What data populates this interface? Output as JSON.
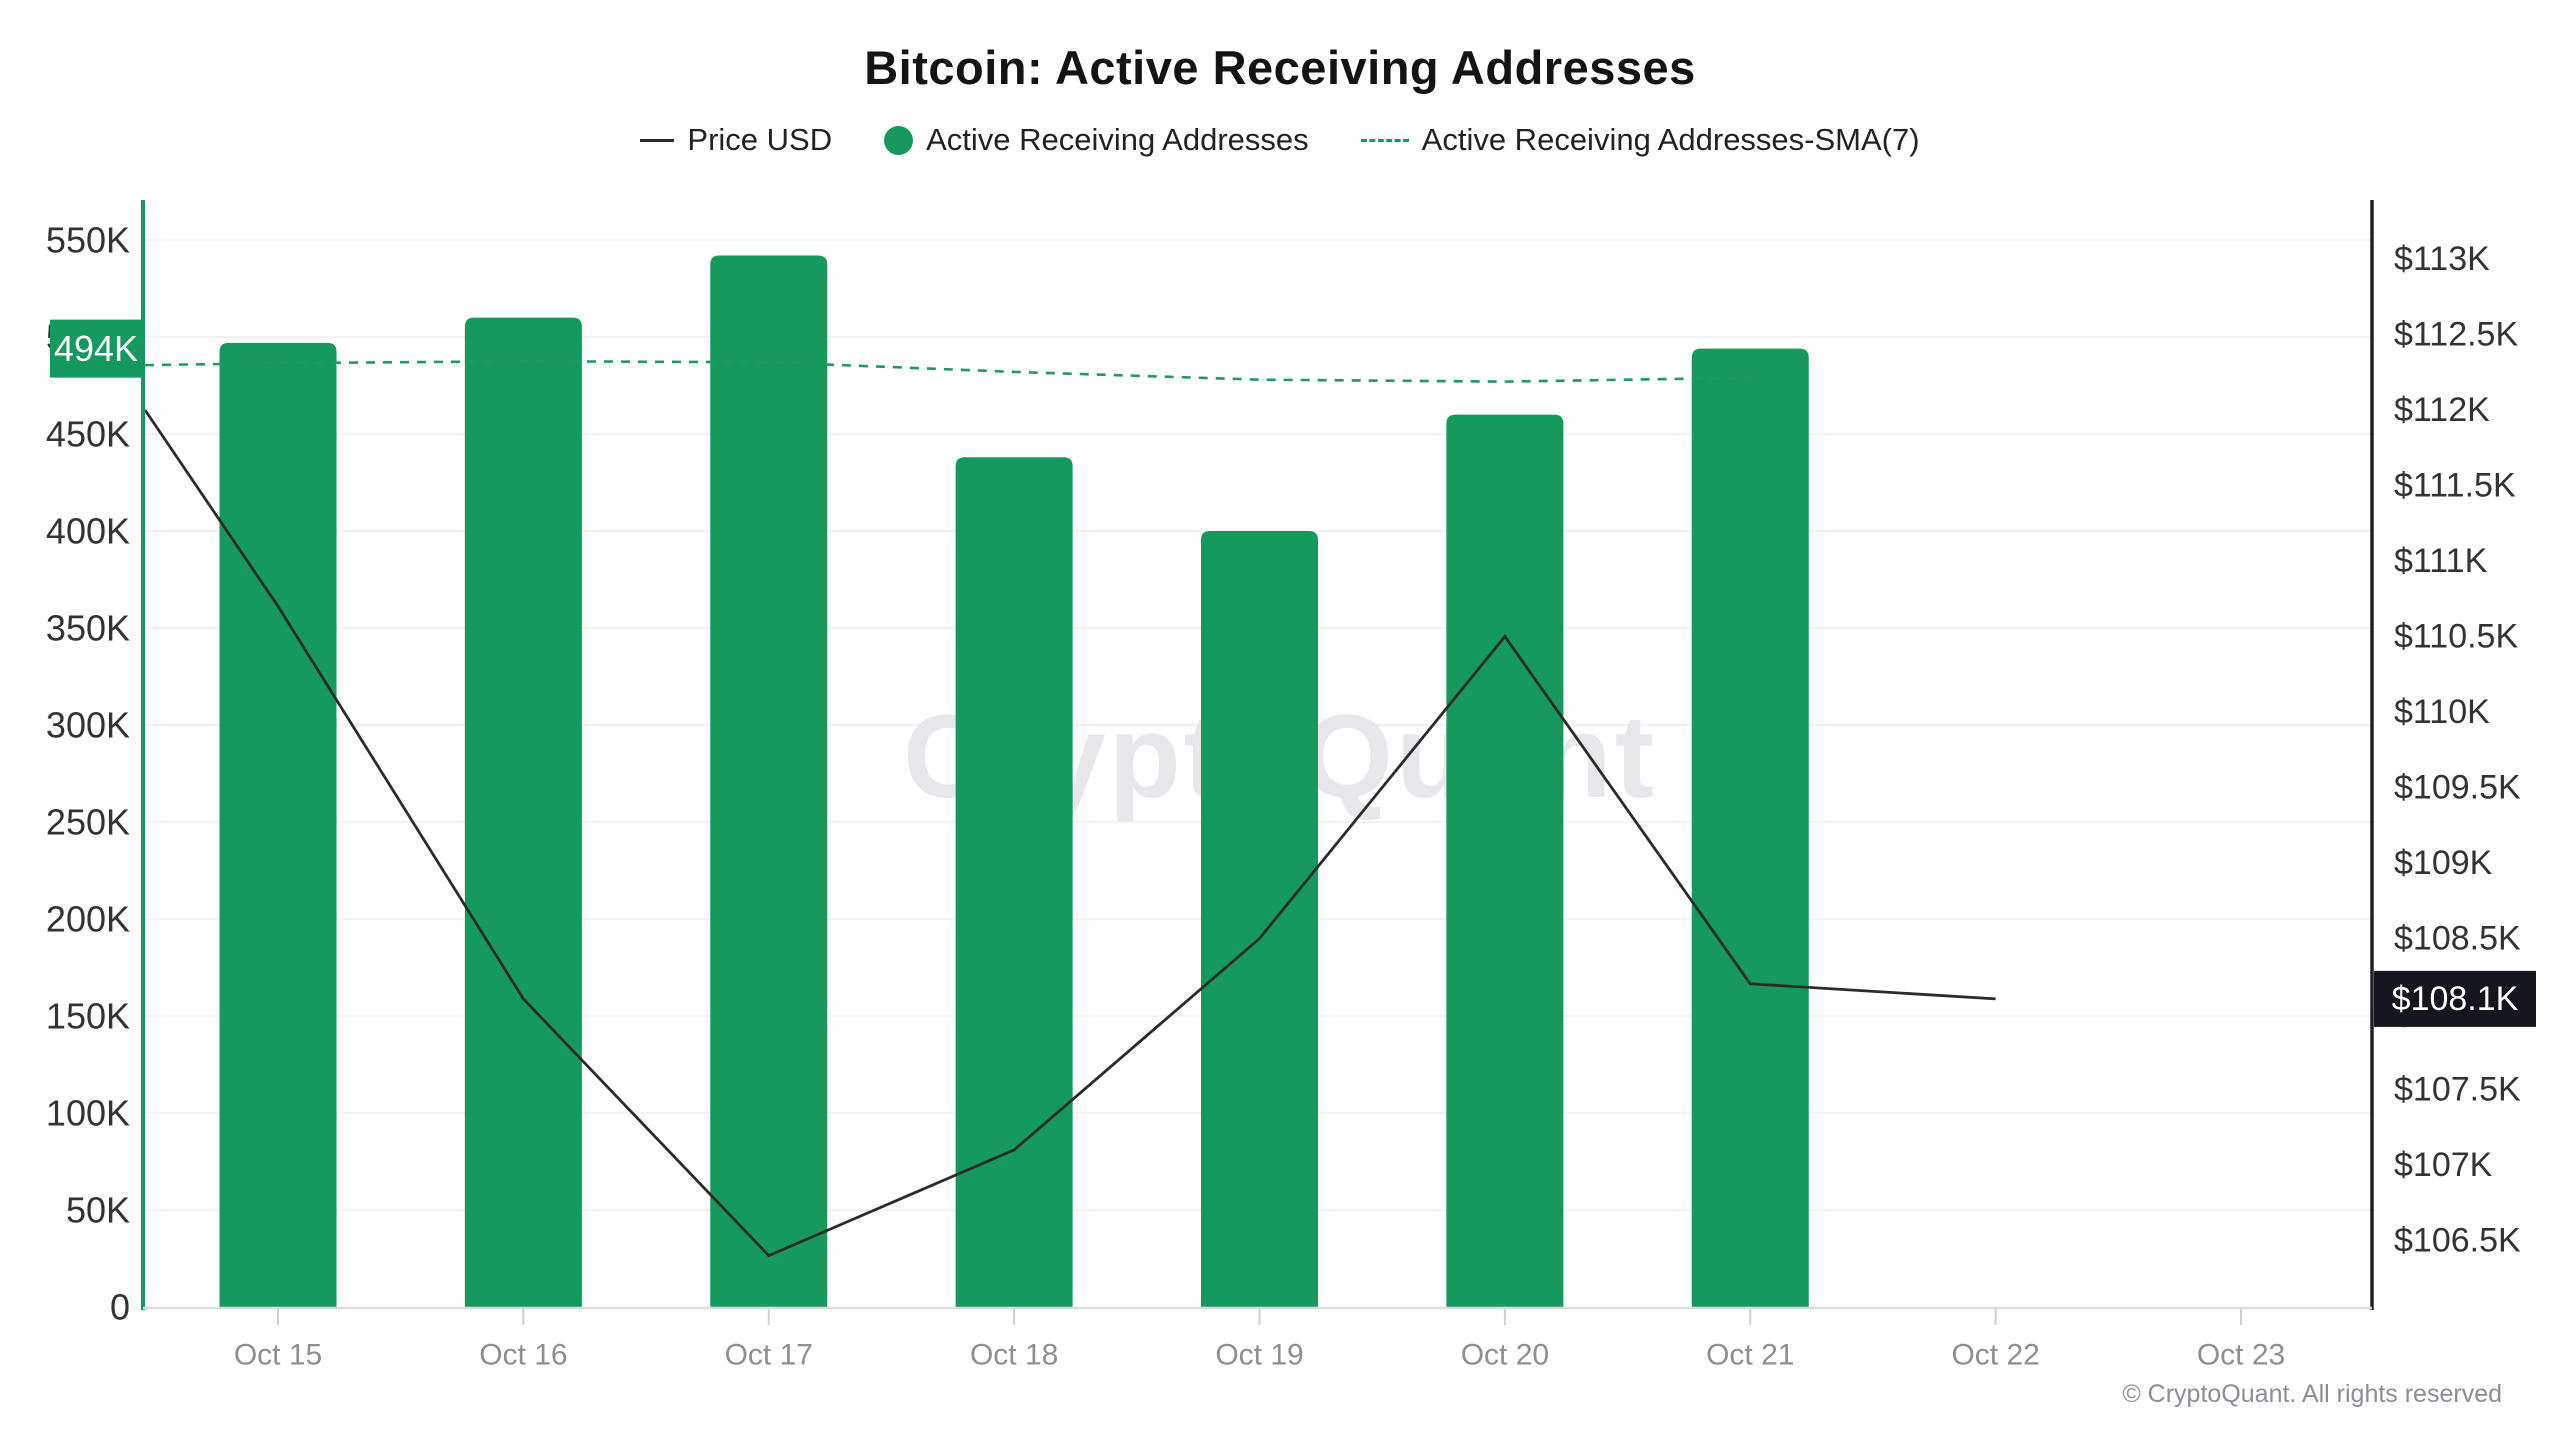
{
  "title": "Bitcoin: Active Receiving Addresses",
  "legend": [
    {
      "label": "Price USD",
      "marker": "solid-line",
      "color": "#2b2b2b"
    },
    {
      "label": "Active Receiving Addresses",
      "marker": "dot",
      "color": "#16995f"
    },
    {
      "label": "Active Receiving Addresses-SMA(7)",
      "marker": "dashed-line",
      "color": "#1d9a64"
    }
  ],
  "watermark": "CryptoQuant",
  "attribution": "© CryptoQuant. All rights reserved",
  "colors": {
    "bar": "#16995f",
    "sma_line": "#1d9a64",
    "price_line": "#2b2b2b",
    "grid": "#f3f3f5",
    "axis_left": "#16995f",
    "axis_right": "#202028",
    "axis_bottom": "#dcdcdf",
    "x_tick": "#cfcfd4",
    "tick_label": "#333333",
    "date_label": "#8e8e93",
    "badge_left_bg": "#16995f",
    "badge_right_bg": "#16161e",
    "badge_text": "#ffffff",
    "watermark_color": "#e7e7ec"
  },
  "chart_data": {
    "type": "bar",
    "title": "Bitcoin: Active Receiving Addresses",
    "xlabel": "",
    "ylabel_left": "Active Receiving Addresses",
    "ylabel_right": "Price USD",
    "grid": "horizontal",
    "legend_position": "top",
    "categories": [
      "Oct 15",
      "Oct 16",
      "Oct 17",
      "Oct 18",
      "Oct 19",
      "Oct 20",
      "Oct 21",
      "Oct 22",
      "Oct 23"
    ],
    "series": [
      {
        "name": "Active Receiving Addresses",
        "type": "bar",
        "axis": "left",
        "values": [
          497000,
          510000,
          542000,
          438000,
          400000,
          460000,
          494000,
          null,
          null
        ]
      },
      {
        "name": "Price USD",
        "type": "line",
        "axis": "right",
        "edge_start_value": 112000,
        "values": [
          110700,
          108100,
          106400,
          107100,
          108500,
          110500,
          108200,
          108100,
          null
        ]
      },
      {
        "name": "Active Receiving Addresses-SMA(7)",
        "type": "dashed-line",
        "axis": "left",
        "edge_start_value": 485500,
        "values": [
          486500,
          487500,
          487000,
          482000,
          478000,
          477000,
          479000,
          null,
          null
        ]
      }
    ],
    "left_axis": {
      "range": [
        0,
        550000
      ],
      "tick_step": 50000,
      "ticks": [
        "0",
        "50K",
        "100K",
        "150K",
        "200K",
        "250K",
        "300K",
        "350K",
        "400K",
        "450K",
        "500K",
        "550K"
      ],
      "current_value": 494000,
      "current_value_label": "494K"
    },
    "right_axis": {
      "range": [
        106500,
        113000
      ],
      "tick_step": 500,
      "ticks": [
        "$106.5K",
        "$107K",
        "$107.5K",
        "$108K",
        "$108.5K",
        "$109K",
        "$109.5K",
        "$110K",
        "$110.5K",
        "$111K",
        "$111.5K",
        "$112K",
        "$112.5K",
        "$113K"
      ],
      "current_value": 108100,
      "current_value_label": "$108.1K"
    }
  }
}
